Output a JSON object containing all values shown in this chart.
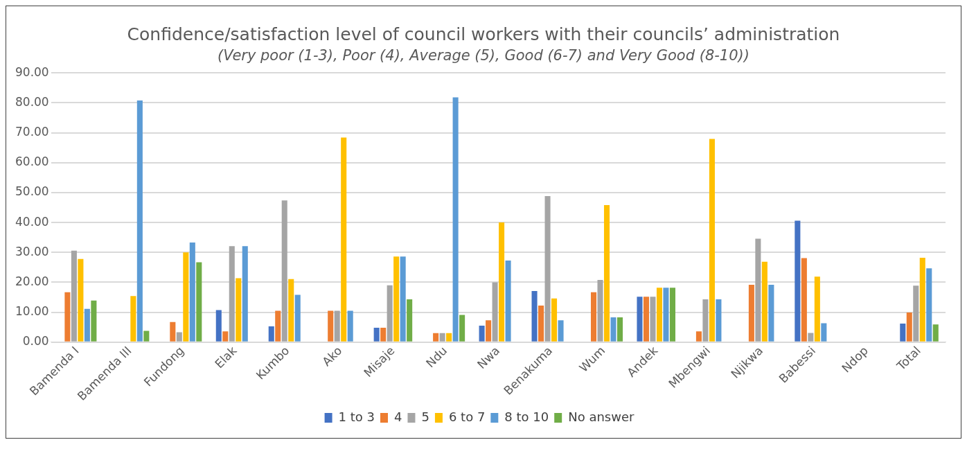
{
  "chart_data": {
    "type": "bar",
    "title": "Confidence/satisfaction level of council workers with their councils’ administration",
    "subtitle": "(Very poor (1-3), Poor (4), Average (5), Good (6-7) and Very Good (8-10))",
    "categories": [
      "Bamenda I",
      "Bamenda III",
      "Fundong",
      "Elak",
      "Kumbo",
      "Ako",
      "Misaje",
      "Ndu",
      "Nwa",
      "Benakuma",
      "Wum",
      "Andek",
      "Mbengwi",
      "Njikwa",
      "Babessi",
      "Ndop",
      "Total"
    ],
    "series": [
      {
        "name": "1 to 3",
        "color": "#4472c4",
        "values": [
          null,
          null,
          null,
          10.7,
          5.3,
          null,
          4.8,
          null,
          5.5,
          17.1,
          null,
          15.2,
          null,
          null,
          40.6,
          null,
          6.2
        ]
      },
      {
        "name": "4",
        "color": "#ed7d31",
        "values": [
          16.7,
          null,
          6.7,
          3.6,
          10.5,
          10.5,
          4.8,
          3.0,
          7.3,
          12.2,
          16.7,
          15.2,
          3.6,
          19.2,
          28.1,
          null,
          9.9
        ]
      },
      {
        "name": "5",
        "color": "#a5a5a5",
        "values": [
          30.6,
          null,
          3.3,
          32.1,
          47.4,
          10.5,
          19.0,
          3.0,
          20.0,
          48.8,
          20.8,
          15.2,
          14.3,
          34.6,
          3.1,
          null,
          18.9
        ]
      },
      {
        "name": "6 to 7",
        "color": "#ffc000",
        "values": [
          27.8,
          15.4,
          30.0,
          21.4,
          21.1,
          68.4,
          28.6,
          3.0,
          40.0,
          14.6,
          45.8,
          18.2,
          67.9,
          26.9,
          21.9,
          null,
          28.2
        ]
      },
      {
        "name": "8 to 10",
        "color": "#5b9bd5",
        "values": [
          11.1,
          80.8,
          33.3,
          32.1,
          15.8,
          10.5,
          28.6,
          81.8,
          27.3,
          7.3,
          8.3,
          18.2,
          14.3,
          19.2,
          6.3,
          null,
          24.7
        ]
      },
      {
        "name": "No answer",
        "color": "#70ad47",
        "values": [
          13.9,
          3.8,
          26.7,
          null,
          null,
          null,
          14.3,
          9.1,
          null,
          null,
          8.3,
          18.2,
          null,
          null,
          null,
          null,
          5.9
        ]
      }
    ],
    "ylim": [
      0,
      90
    ],
    "yticks": [
      {
        "value": 0,
        "label": "0.00"
      },
      {
        "value": 10,
        "label": "10.00"
      },
      {
        "value": 20,
        "label": "20.00"
      },
      {
        "value": 30,
        "label": "30.00"
      },
      {
        "value": 40,
        "label": "40.00"
      },
      {
        "value": 50,
        "label": "50.00"
      },
      {
        "value": 60,
        "label": "60.00"
      },
      {
        "value": 70,
        "label": "70.00"
      },
      {
        "value": 80,
        "label": "80.00"
      },
      {
        "value": 90,
        "label": "90.00"
      }
    ],
    "grid": "y",
    "legend": "bottom"
  }
}
